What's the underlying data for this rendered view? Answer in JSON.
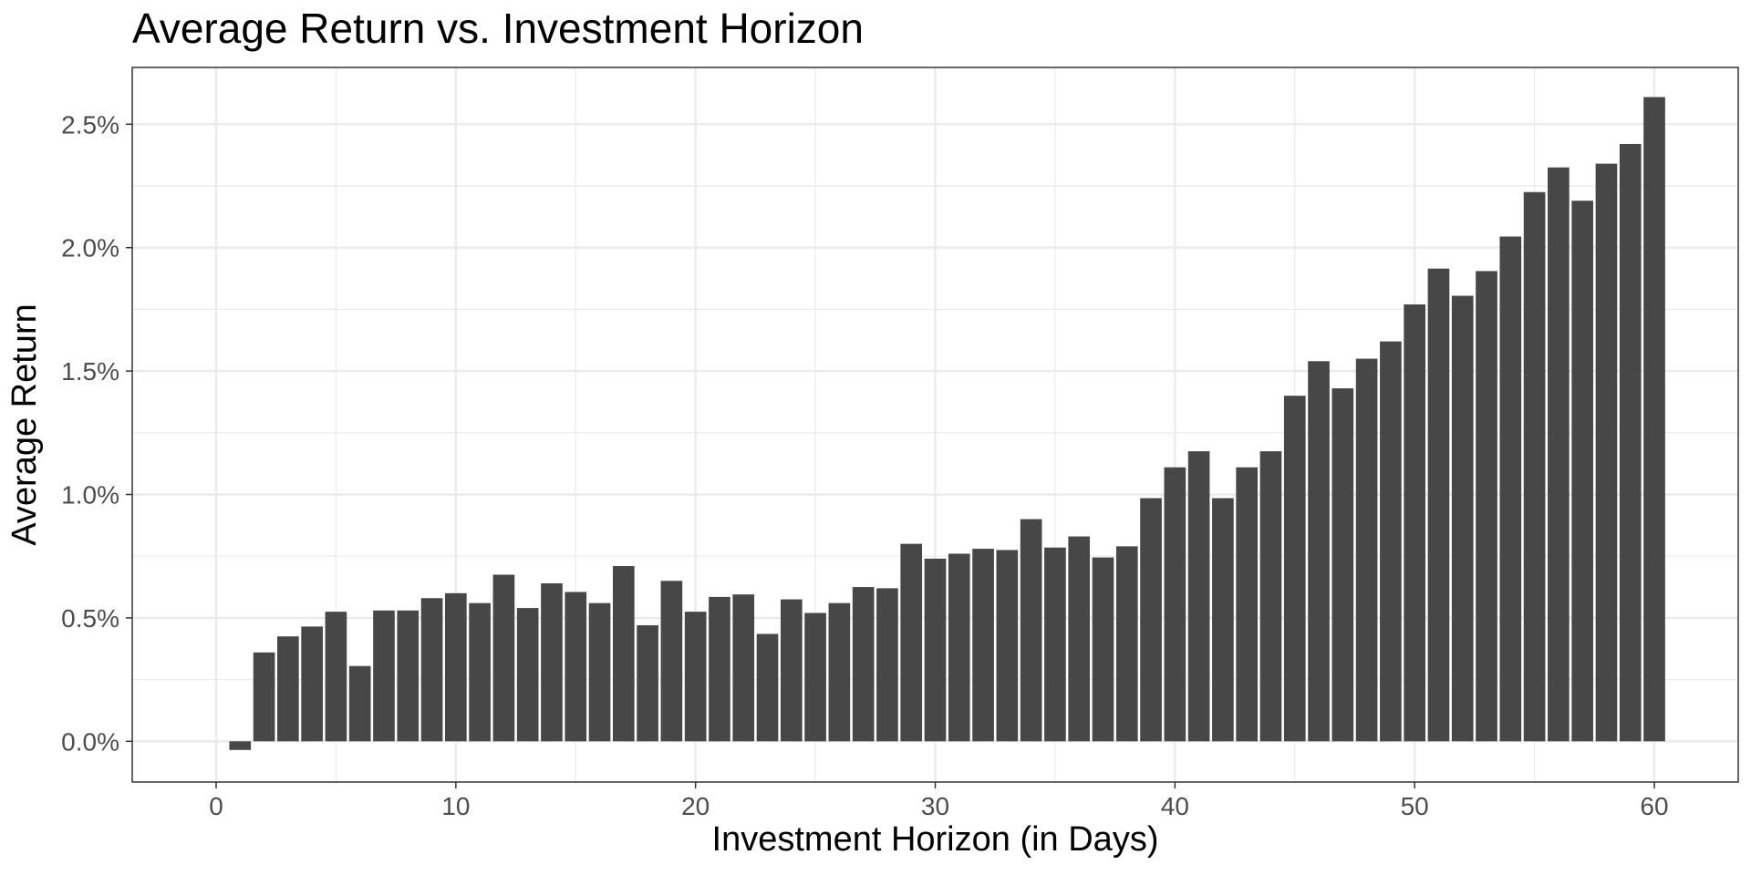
{
  "chart_data": {
    "type": "bar",
    "title": "Average Return vs. Investment Horizon",
    "xlabel": "Investment Horizon (in Days)",
    "ylabel": "Average Return",
    "x": [
      1,
      2,
      3,
      4,
      5,
      6,
      7,
      8,
      9,
      10,
      11,
      12,
      13,
      14,
      15,
      16,
      17,
      18,
      19,
      20,
      21,
      22,
      23,
      24,
      25,
      26,
      27,
      28,
      29,
      30,
      31,
      32,
      33,
      34,
      35,
      36,
      37,
      38,
      39,
      40,
      41,
      42,
      43,
      44,
      45,
      46,
      47,
      48,
      49,
      50,
      51,
      52,
      53,
      54,
      55,
      56,
      57,
      58,
      59,
      60
    ],
    "values": [
      -0.035,
      0.36,
      0.425,
      0.465,
      0.525,
      0.305,
      0.53,
      0.53,
      0.58,
      0.6,
      0.56,
      0.675,
      0.54,
      0.64,
      0.605,
      0.56,
      0.71,
      0.47,
      0.65,
      0.525,
      0.585,
      0.595,
      0.435,
      0.575,
      0.52,
      0.56,
      0.625,
      0.62,
      0.8,
      0.74,
      0.76,
      0.78,
      0.775,
      0.9,
      0.785,
      0.83,
      0.745,
      0.79,
      0.985,
      1.11,
      1.175,
      0.985,
      1.11,
      1.175,
      1.4,
      1.54,
      1.43,
      1.55,
      1.62,
      1.77,
      1.915,
      1.805,
      1.905,
      2.045,
      2.225,
      2.325,
      2.19,
      2.34,
      2.42,
      2.61
    ],
    "xlim": [
      -3.5,
      63.5
    ],
    "ylim": [
      -0.165,
      2.73
    ],
    "x_ticks": [
      0,
      10,
      20,
      30,
      40,
      50,
      60
    ],
    "x_tick_labels": [
      "0",
      "10",
      "20",
      "30",
      "40",
      "50",
      "60"
    ],
    "y_ticks": [
      0,
      0.5,
      1,
      1.5,
      2,
      2.5
    ],
    "y_tick_labels": [
      "0.0%",
      "0.5%",
      "1.0%",
      "1.5%",
      "2.0%",
      "2.5%"
    ],
    "y_unit": "%",
    "grid": true,
    "bar_color": "#474747",
    "grid_color": "#ebebeb",
    "panel_border_color": "#333333"
  }
}
